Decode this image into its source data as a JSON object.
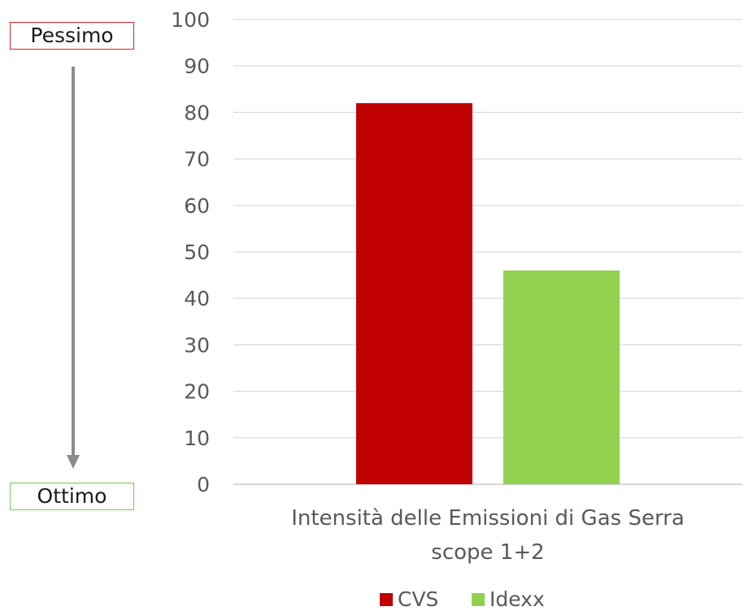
{
  "scale": {
    "worst_label": "Pessimo",
    "best_label": "Ottimo",
    "worst_color": "#d62828",
    "best_color": "#78c850",
    "arrow_color": "#8c8c8c"
  },
  "chart_data": {
    "type": "bar",
    "categories": [
      "Intensità delle Emissioni di Gas Serra scope 1+2"
    ],
    "category_lines": [
      "Intensità delle Emissioni di Gas Serra",
      "scope 1+2"
    ],
    "series": [
      {
        "name": "CVS",
        "values": [
          82
        ],
        "color": "#c00000"
      },
      {
        "name": "Idexx",
        "values": [
          46
        ],
        "color": "#92d050"
      }
    ],
    "ylim": [
      0,
      100
    ],
    "yticks": [
      0,
      10,
      20,
      30,
      40,
      50,
      60,
      70,
      80,
      90,
      100
    ],
    "grid": true,
    "legend": "bottom"
  }
}
